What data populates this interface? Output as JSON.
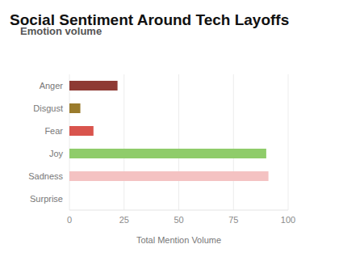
{
  "chart_data": {
    "type": "bar",
    "title": "Social Sentiment Around Tech Layoffs",
    "subtitle": "Emotion volume",
    "x_label": "Total Mention Volume",
    "orientation": "horizontal",
    "categories": [
      "Anger",
      "Disgust",
      "Fear",
      "Joy",
      "Sadness",
      "Surprise"
    ],
    "values": [
      22,
      5,
      11,
      90,
      91,
      0
    ],
    "colors": [
      "#8e3a34",
      "#9a7b2c",
      "#d9544d",
      "#8fcc6a",
      "#f4c2c2",
      "#7aa6d6"
    ],
    "xlim": [
      0,
      100
    ],
    "xticks": [
      0,
      25,
      50,
      75,
      100
    ],
    "grid": true
  }
}
